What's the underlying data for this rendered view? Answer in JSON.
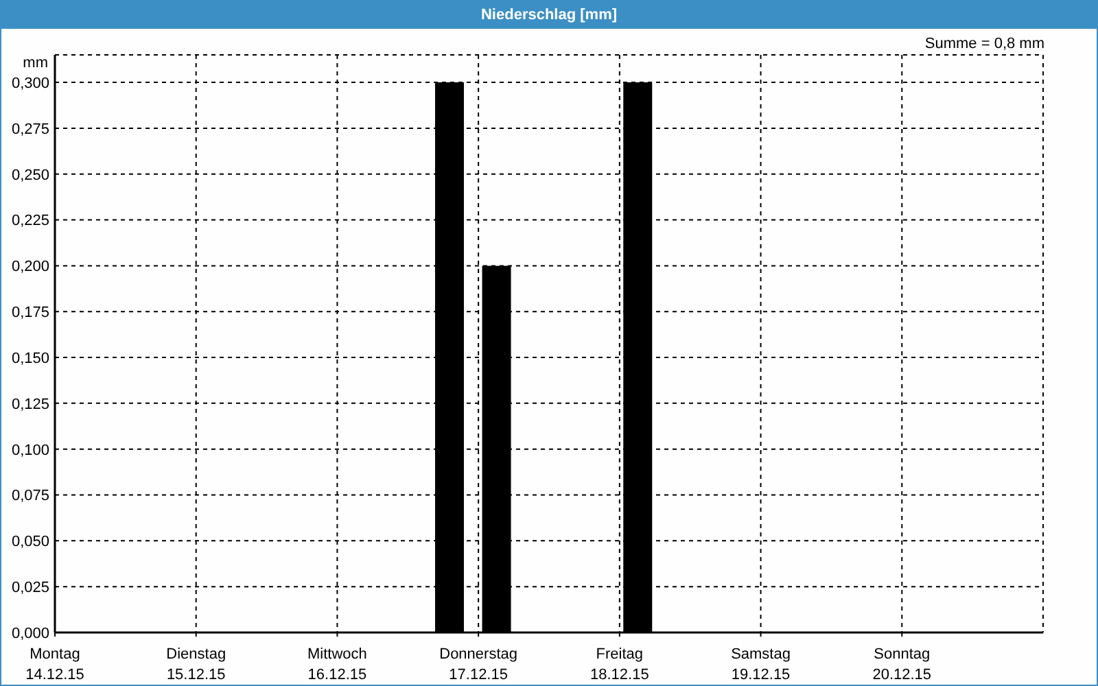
{
  "chart_data": {
    "type": "bar",
    "title": "Niederschlag [mm]",
    "ylabel": "mm",
    "annotations": [
      "Summe = 0,8 mm"
    ],
    "x": [
      "--12-16T19:00",
      "--12-17T03:00",
      "--12-18T03:00"
    ],
    "values": [
      0.3,
      0.2,
      0.3
    ],
    "color": "#000000",
    "xlim": [
      "--12-14",
      "--12-21"
    ],
    "xticks": [
      {
        "value": "--12-14",
        "label": "Montag\n14.12.15"
      },
      {
        "value": "--12-15",
        "label": "Dienstag\n15.12.15"
      },
      {
        "value": "--12-16",
        "label": "Mittwoch\n16.12.15"
      },
      {
        "value": "--12-17",
        "label": "Donnerstag\n17.12.15"
      },
      {
        "value": "--12-18",
        "label": "Freitag\n18.12.15"
      },
      {
        "value": "--12-19",
        "label": "Samstag\n19.12.15"
      },
      {
        "value": "--12-20",
        "label": "Sonntag\n20.12.15"
      }
    ],
    "ylim": [
      0,
      0.315
    ],
    "yticks": [
      {
        "value": 0,
        "label": "0,000"
      },
      {
        "value": 0.025,
        "label": "0,025"
      },
      {
        "value": 0.05,
        "label": "0,050"
      },
      {
        "value": 0.075,
        "label": "0,075"
      },
      {
        "value": 0.1,
        "label": "0,100"
      },
      {
        "value": 0.125,
        "label": "0,125"
      },
      {
        "value": 0.15,
        "label": "0,150"
      },
      {
        "value": 0.175,
        "label": "0,175"
      },
      {
        "value": 0.2,
        "label": "0,200"
      },
      {
        "value": 0.225,
        "label": "0,225"
      },
      {
        "value": 0.25,
        "label": "0,250"
      },
      {
        "value": 0.275,
        "label": "0,275"
      },
      {
        "value": 0.3,
        "label": "0,300"
      }
    ],
    "grid": true
  }
}
